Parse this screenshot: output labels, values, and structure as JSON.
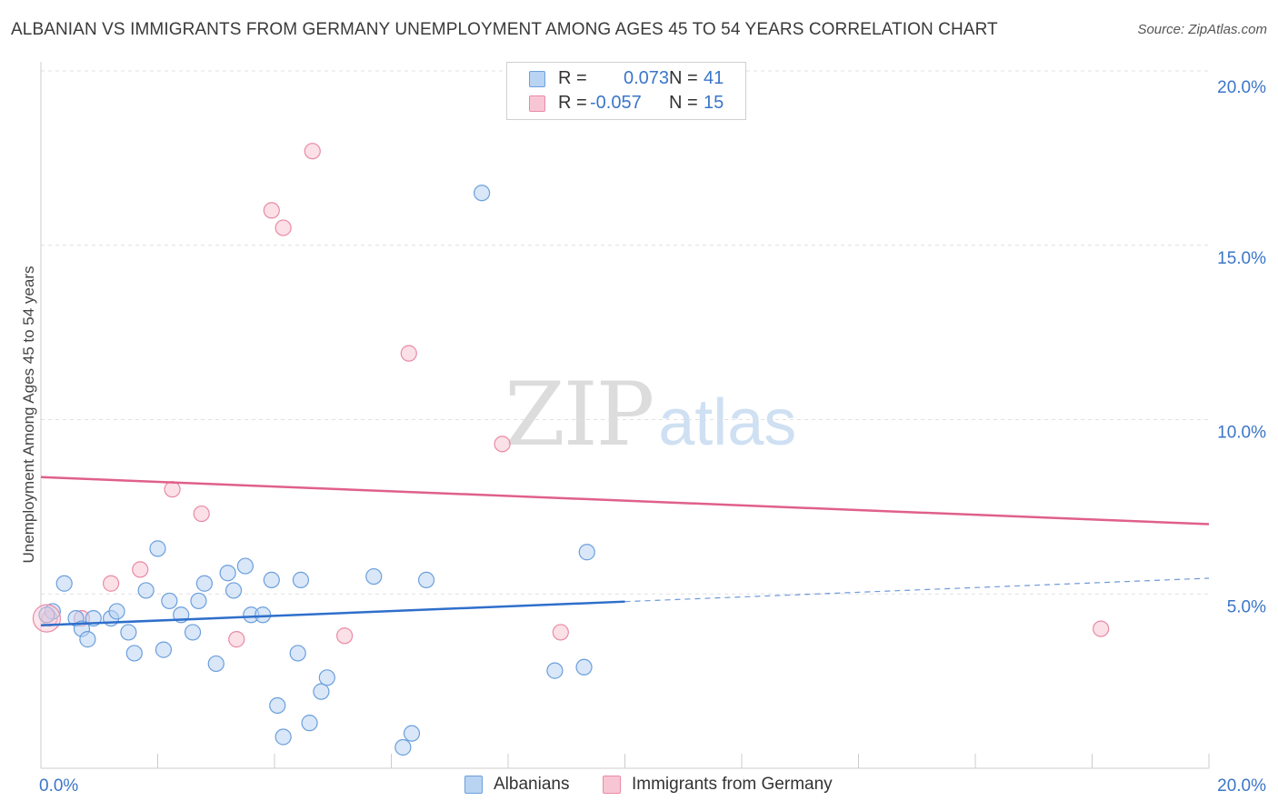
{
  "title": "ALBANIAN VS IMMIGRANTS FROM GERMANY UNEMPLOYMENT AMONG AGES 45 TO 54 YEARS CORRELATION CHART",
  "source": "Source: ZipAtlas.com",
  "watermark": {
    "zip": "ZIP",
    "atlas": "atlas"
  },
  "colors": {
    "albanians_fill": "#b9d3f3",
    "albanians_stroke": "#6b9fdc",
    "albanians_line": "#2f6fcb",
    "germany_fill": "#f8c6d3",
    "germany_stroke": "#e98aa6",
    "germany_line": "#e0608a",
    "axis_text": "#3b76c9",
    "grid": "#e1e1e1"
  },
  "legend": {
    "r_label": "R =",
    "n_label": "N =",
    "rows": [
      {
        "series": "Albanians",
        "r": "0.073",
        "n": "41"
      },
      {
        "series": "Immigrants from Germany",
        "r": "-0.057",
        "n": "15"
      }
    ]
  },
  "chart_data": {
    "type": "scatter",
    "title": "ALBANIAN VS IMMIGRANTS FROM GERMANY UNEMPLOYMENT AMONG AGES 45 TO 54 YEARS CORRELATION CHART",
    "xlabel": "",
    "ylabel": "Unemployment Among Ages 45 to 54 years",
    "xlim": [
      0,
      20
    ],
    "ylim": [
      0,
      20
    ],
    "x_tick_labels": [
      "0.0%",
      "20.0%"
    ],
    "y_ticks": [
      {
        "value": 5,
        "label": "5.0%"
      },
      {
        "value": 10,
        "label": "10.0%"
      },
      {
        "value": 15,
        "label": "15.0%"
      },
      {
        "value": 20,
        "label": "20.0%"
      }
    ],
    "grid": true,
    "legend_position": "top-center",
    "series": [
      {
        "name": "Albanians",
        "r": 0.073,
        "n": 41,
        "trend": {
          "x0": 0,
          "y0": 4.1,
          "x1": 10,
          "y1": 4.78,
          "dash_to_x": 20,
          "dash_y": 5.45
        },
        "points": [
          [
            0.2,
            4.5
          ],
          [
            0.4,
            5.3
          ],
          [
            0.6,
            4.3
          ],
          [
            0.7,
            4.0
          ],
          [
            0.8,
            3.7
          ],
          [
            0.9,
            4.3
          ],
          [
            1.2,
            4.3
          ],
          [
            1.3,
            4.5
          ],
          [
            1.5,
            3.9
          ],
          [
            1.6,
            3.3
          ],
          [
            1.8,
            5.1
          ],
          [
            2.0,
            6.3
          ],
          [
            2.1,
            3.4
          ],
          [
            2.2,
            4.8
          ],
          [
            2.4,
            4.4
          ],
          [
            2.6,
            3.9
          ],
          [
            2.7,
            4.8
          ],
          [
            2.8,
            5.3
          ],
          [
            3.0,
            3.0
          ],
          [
            3.2,
            5.6
          ],
          [
            3.3,
            5.1
          ],
          [
            3.5,
            5.8
          ],
          [
            3.6,
            4.4
          ],
          [
            3.8,
            4.4
          ],
          [
            3.95,
            5.4
          ],
          [
            4.05,
            1.8
          ],
          [
            4.15,
            0.9
          ],
          [
            4.4,
            3.3
          ],
          [
            4.45,
            5.4
          ],
          [
            4.6,
            1.3
          ],
          [
            4.8,
            2.2
          ],
          [
            4.9,
            2.6
          ],
          [
            5.7,
            5.5
          ],
          [
            6.2,
            0.6
          ],
          [
            6.35,
            1.0
          ],
          [
            6.6,
            5.4
          ],
          [
            7.55,
            16.5
          ],
          [
            8.8,
            2.8
          ],
          [
            9.3,
            2.9
          ],
          [
            9.35,
            6.2
          ],
          [
            0.1,
            4.4
          ]
        ]
      },
      {
        "name": "Immigrants from Germany",
        "r": -0.057,
        "n": 15,
        "trend": {
          "x0": 0,
          "y0": 8.35,
          "x1": 20,
          "y1": 7.0
        },
        "points": [
          [
            0.15,
            4.3
          ],
          [
            0.7,
            4.3
          ],
          [
            1.2,
            5.3
          ],
          [
            1.7,
            5.7
          ],
          [
            2.25,
            8.0
          ],
          [
            2.75,
            7.3
          ],
          [
            3.35,
            3.7
          ],
          [
            3.95,
            16.0
          ],
          [
            4.15,
            15.5
          ],
          [
            4.65,
            17.7
          ],
          [
            5.2,
            3.8
          ],
          [
            6.3,
            11.9
          ],
          [
            7.9,
            9.3
          ],
          [
            8.9,
            3.9
          ],
          [
            18.15,
            4.0
          ]
        ]
      }
    ]
  }
}
